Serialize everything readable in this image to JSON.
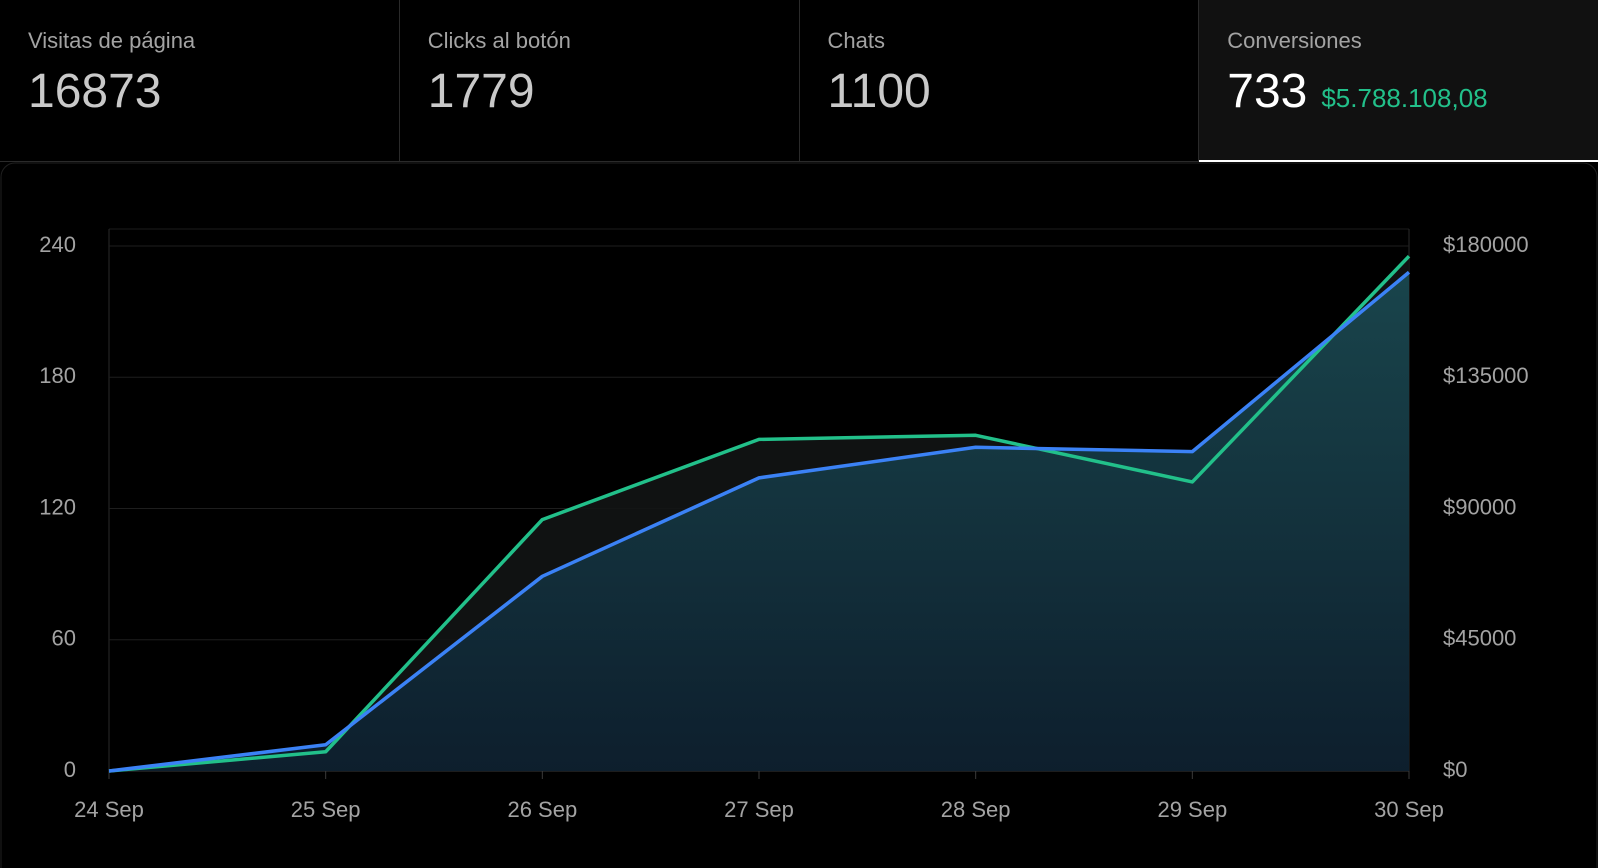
{
  "cards": [
    {
      "label": "Visitas de página",
      "value": "16873"
    },
    {
      "label": "Clicks al botón",
      "value": "1779"
    },
    {
      "label": "Chats",
      "value": "1100"
    },
    {
      "label": "Conversiones",
      "value": "733",
      "extra": "$5.788.108,08"
    }
  ],
  "chart_data": {
    "type": "line",
    "categories": [
      "24 Sep",
      "25 Sep",
      "26 Sep",
      "27 Sep",
      "28 Sep",
      "29 Sep",
      "30 Sep"
    ],
    "series": [
      {
        "color": "#22c08a",
        "axis": "y2",
        "values": [
          0,
          6600,
          86200,
          113700,
          115100,
          99100,
          176500
        ]
      },
      {
        "color": "#3b82f6",
        "values": [
          0,
          12,
          89,
          134,
          148,
          146,
          228
        ]
      }
    ],
    "ylim": [
      0,
      240
    ],
    "yticks": [
      0,
      60,
      120,
      180,
      240
    ],
    "y2lim": [
      0,
      180000
    ],
    "y2ticks": [
      {
        "value": 0,
        "label": "$0"
      },
      {
        "value": 45000,
        "label": "$45000"
      },
      {
        "value": 90000,
        "label": "$90000"
      },
      {
        "value": 135000,
        "label": "$135000"
      },
      {
        "value": 180000,
        "label": "$180000"
      }
    ],
    "grid": true
  }
}
